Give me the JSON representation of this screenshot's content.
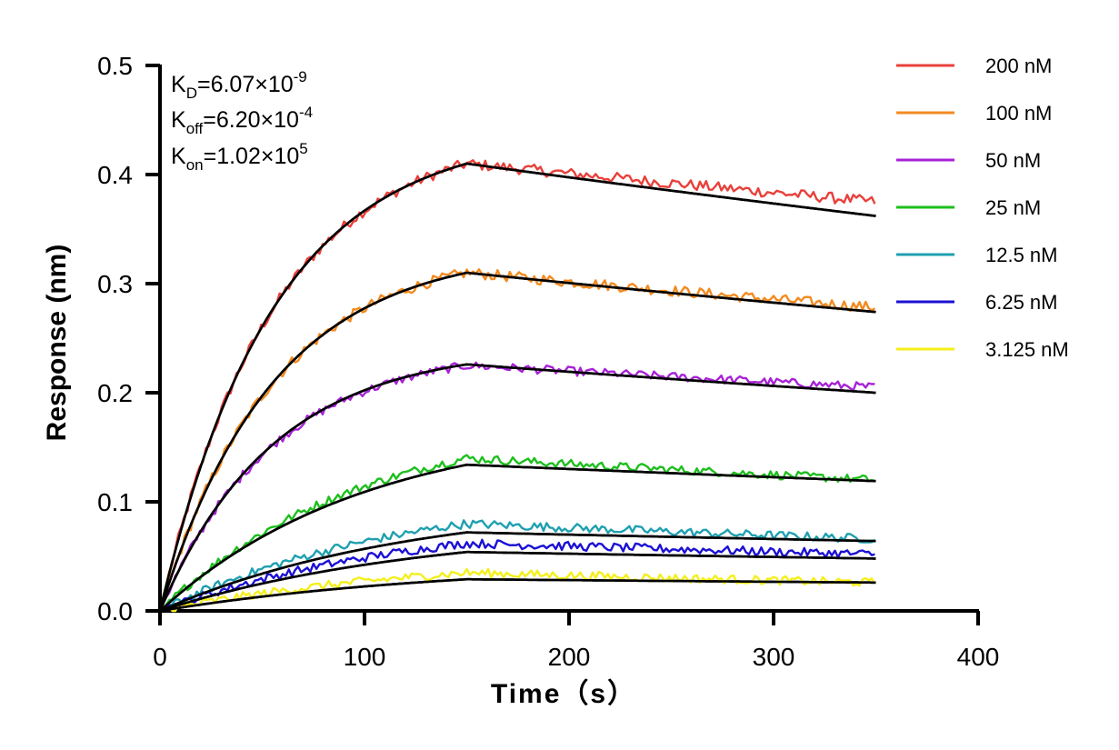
{
  "chart_data": {
    "type": "line",
    "title": "",
    "xlabel": "Time（s）",
    "ylabel": "Response (nm)",
    "xlim": [
      0,
      400
    ],
    "ylim": [
      0,
      0.5
    ],
    "x_ticks": [
      0,
      100,
      200,
      300,
      400
    ],
    "x_tick_labels": [
      "0",
      "100",
      "200",
      "300",
      "400"
    ],
    "y_ticks": [
      0.0,
      0.1,
      0.2,
      0.3,
      0.4,
      0.5
    ],
    "y_tick_labels": [
      "0.0",
      "0.1",
      "0.2",
      "0.3",
      "0.4",
      "0.5"
    ],
    "grid": false,
    "legend_position": "right",
    "x": [
      0,
      150,
      350
    ],
    "series": [
      {
        "name": "200 nM",
        "color": "#e8403a",
        "peak": 0.41,
        "end": 0.375,
        "noise": 0.005
      },
      {
        "name": "100 nM",
        "color": "#f38a1f",
        "peak": 0.31,
        "end": 0.278,
        "noise": 0.005
      },
      {
        "name": "50 nM",
        "color": "#a722d6",
        "peak": 0.225,
        "end": 0.205,
        "noise": 0.004
      },
      {
        "name": "25 nM",
        "color": "#1dbf1d",
        "peak": 0.14,
        "end": 0.12,
        "noise": 0.004
      },
      {
        "name": "12.5 nM",
        "color": "#1ea0b0",
        "peak": 0.08,
        "end": 0.066,
        "noise": 0.004
      },
      {
        "name": "6.25 nM",
        "color": "#1b10d4",
        "peak": 0.062,
        "end": 0.052,
        "noise": 0.004
      },
      {
        "name": "3.125 nM",
        "color": "#f5ef1a",
        "peak": 0.035,
        "end": 0.026,
        "noise": 0.004
      }
    ],
    "fits": [
      {
        "peak": 0.41,
        "end": 0.362
      },
      {
        "peak": 0.31,
        "end": 0.274
      },
      {
        "peak": 0.226,
        "end": 0.2
      },
      {
        "peak": 0.134,
        "end": 0.119
      },
      {
        "peak": 0.072,
        "end": 0.064
      },
      {
        "peak": 0.054,
        "end": 0.048
      },
      {
        "peak": 0.029,
        "end": 0.026
      }
    ],
    "fit_color": "#000000",
    "kinetics": {
      "kd": {
        "base": "K",
        "sub": "D",
        "value": "=6.07×10",
        "exp": "-9"
      },
      "koff": {
        "base": "K",
        "sub": "off",
        "value": "=6.20×10",
        "exp": "-4"
      },
      "kon": {
        "base": "K",
        "sub": "on",
        "value": "=1.02×10",
        "exp": "5"
      }
    }
  }
}
